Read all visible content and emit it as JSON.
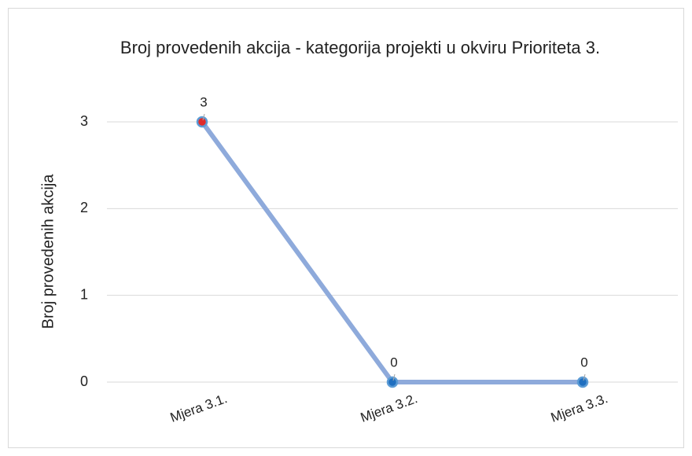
{
  "chart_data": {
    "type": "line",
    "title": "Broj provedenih akcija - kategorija projekti u okviru Prioriteta 3.",
    "y_label": "Broj provedenih akcija",
    "categories": [
      "Mjera 3.1.",
      "Mjera 3.2.",
      "Mjera 3.3."
    ],
    "values": [
      3,
      0,
      0
    ],
    "color": "#8eaadb",
    "marker_colors": [
      "#e02b2b",
      "#1f6fc0",
      "#1f6fc0"
    ],
    "ylim": [
      0,
      3
    ],
    "yticks": [
      0,
      1,
      2,
      3
    ],
    "grid": true
  }
}
